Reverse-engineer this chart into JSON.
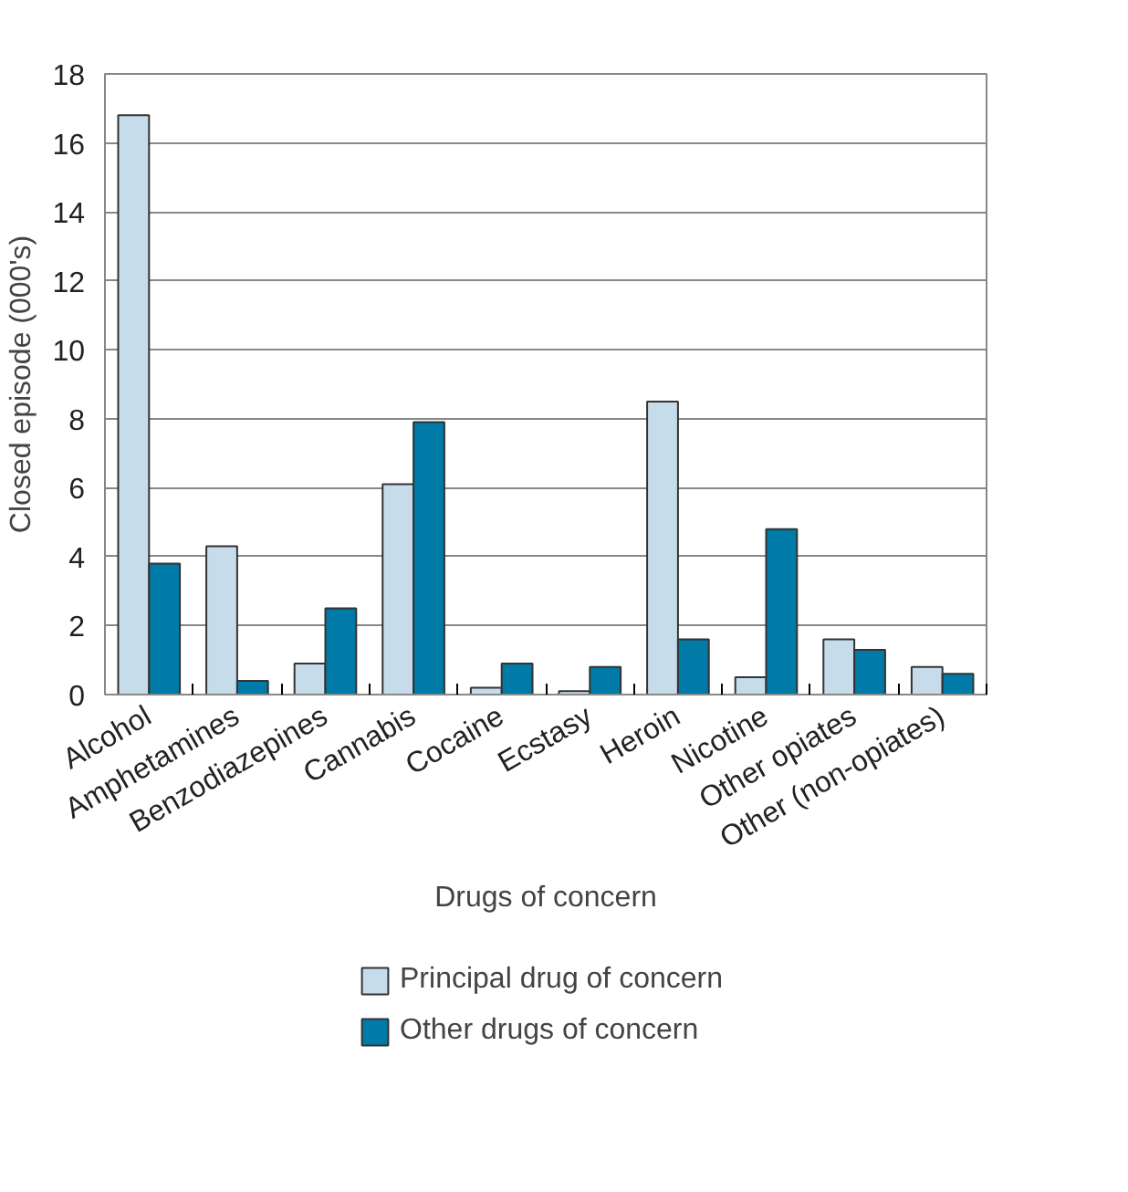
{
  "chart_data": {
    "type": "bar",
    "xlabel": "Drugs of concern",
    "ylabel": "Closed episode (000's)",
    "categories": [
      "Alcohol",
      "Amphetamines",
      "Benzodiazepines",
      "Cannabis",
      "Cocaine",
      "Ecstasy",
      "Heroin",
      "Nicotine",
      "Other opiates",
      "Other (non-opiates)"
    ],
    "series": [
      {
        "name": "Principal drug of concern",
        "color": "#c6dcea",
        "values": [
          16.8,
          4.3,
          0.9,
          6.1,
          0.2,
          0.1,
          8.5,
          0.5,
          1.6,
          0.8
        ]
      },
      {
        "name": "Other drugs of concern",
        "color": "#007ba7",
        "values": [
          3.8,
          0.4,
          2.5,
          7.9,
          0.9,
          0.8,
          1.6,
          4.8,
          1.3,
          0.6
        ]
      }
    ],
    "ylim": [
      0,
      18
    ],
    "yticks": [
      0,
      2,
      4,
      6,
      8,
      10,
      12,
      14,
      16,
      18
    ],
    "grid": "y",
    "legend": "bottom"
  }
}
